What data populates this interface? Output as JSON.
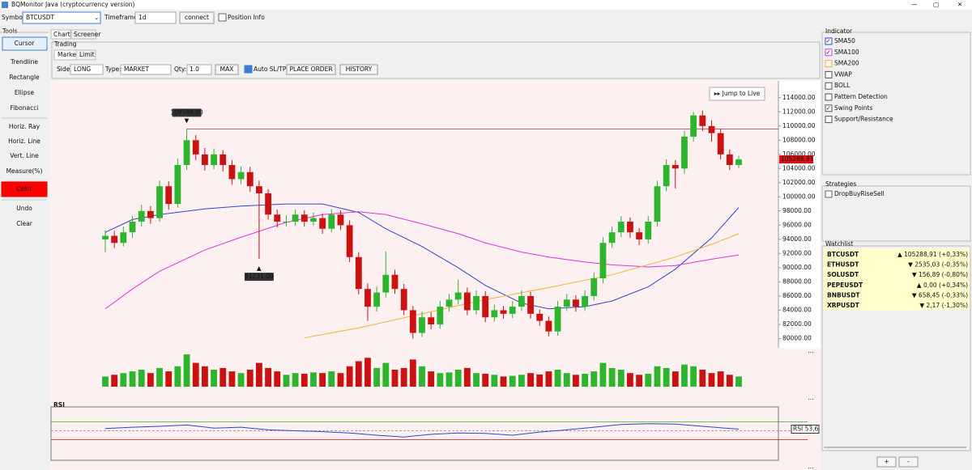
{
  "window": {
    "title": "BQMonitor Java (cryptocurrency version)"
  },
  "toolbar": {
    "symbol_label": "Symbol:",
    "symbol": "BTCUSDT",
    "timeframe_label": "Timeframe:",
    "timeframe": "1d",
    "connect": "connect",
    "position_info": "Position Info"
  },
  "tools": {
    "title": "Tools",
    "buttons": [
      "Cursor",
      "Trendline",
      "Rectangle",
      "Ellipse",
      "Fibonacci",
      "Horiz. Ray",
      "Horiz. Line",
      "Vert. Line",
      "Measure(%)",
      "Color",
      "Undo",
      "Clear"
    ]
  },
  "tabs": [
    "Chart",
    "Screener"
  ],
  "trading": {
    "title": "Trading",
    "tabs": [
      "Market",
      "Limit"
    ],
    "side_label": "Side:",
    "side": "LONG",
    "type_label": "Type:",
    "type": "MARKET",
    "qty_label": "Qty:",
    "qty": "1.0",
    "max": "MAX",
    "auto_sltp": "Auto SL/TP",
    "place_order": "PLACE ORDER",
    "history": "HISTORY"
  },
  "jump_to_live": "▸▸ Jump to Live",
  "chart_data": {
    "type": "candlestick",
    "up_color": "#2db52d",
    "down_color": "#cc1111",
    "xlim": [
      0,
      70
    ],
    "ylim": [
      80000,
      115800
    ],
    "yticks": [
      {
        "value": 80000,
        "label": "80000.00"
      },
      {
        "value": 82000,
        "label": "82000.00"
      },
      {
        "value": 84000,
        "label": "84000.00"
      },
      {
        "value": 86000,
        "label": "86000.00"
      },
      {
        "value": 88000,
        "label": "88000.00"
      },
      {
        "value": 90000,
        "label": "90000.00"
      },
      {
        "value": 92000,
        "label": "92000.00"
      },
      {
        "value": 94000,
        "label": "94000.00"
      },
      {
        "value": 96000,
        "label": "96000.00"
      },
      {
        "value": 98000,
        "label": "98000.00"
      },
      {
        "value": 100000,
        "label": "100000.00"
      },
      {
        "value": 102000,
        "label": "102000.00"
      },
      {
        "value": 104000,
        "label": "104000.00"
      },
      {
        "value": 106000,
        "label": "106000.00"
      },
      {
        "value": 108000,
        "label": "108000.00"
      },
      {
        "value": 110000,
        "label": "110000.00"
      },
      {
        "value": 112000,
        "label": "112000.00"
      },
      {
        "value": 114000,
        "label": "114000.00"
      }
    ],
    "candles": [
      [
        94000,
        95300,
        92200,
        94500
      ],
      [
        94500,
        95200,
        92800,
        93500
      ],
      [
        93500,
        95800,
        93000,
        95000
      ],
      [
        95000,
        97300,
        94200,
        96500
      ],
      [
        96500,
        98900,
        95800,
        98000
      ],
      [
        98000,
        98700,
        96200,
        97000
      ],
      [
        97000,
        102300,
        96500,
        101500
      ],
      [
        101500,
        102200,
        98200,
        99000
      ],
      [
        99000,
        105400,
        98500,
        104500
      ],
      [
        104500,
        109588,
        103800,
        108000
      ],
      [
        108000,
        108700,
        105200,
        106000
      ],
      [
        106000,
        106900,
        103700,
        104500
      ],
      [
        104500,
        106800,
        103900,
        106000
      ],
      [
        106000,
        106600,
        103600,
        104500
      ],
      [
        104500,
        105200,
        101700,
        102500
      ],
      [
        102500,
        104300,
        101800,
        103500
      ],
      [
        103500,
        104200,
        100700,
        101500
      ],
      [
        101500,
        102300,
        91231,
        100500
      ],
      [
        100500,
        101100,
        96800,
        97500
      ],
      [
        97500,
        98200,
        95700,
        96500
      ],
      [
        96500,
        97400,
        95800,
        96500
      ],
      [
        96500,
        98200,
        95900,
        97500
      ],
      [
        97500,
        98100,
        95800,
        96500
      ],
      [
        96500,
        97800,
        95900,
        97000
      ],
      [
        97000,
        97600,
        94800,
        95500
      ],
      [
        95500,
        98300,
        95000,
        97500
      ],
      [
        97500,
        98100,
        95300,
        96000
      ],
      [
        96000,
        96700,
        90800,
        91500
      ],
      [
        91500,
        92200,
        86200,
        87000
      ],
      [
        87000,
        87800,
        82500,
        84500
      ],
      [
        84500,
        87300,
        83800,
        86500
      ],
      [
        86500,
        92300,
        85800,
        89000
      ],
      [
        89000,
        89700,
        86300,
        87000
      ],
      [
        87000,
        87700,
        83300,
        84000
      ],
      [
        84000,
        84600,
        80000,
        80800
      ],
      [
        80800,
        83800,
        80200,
        83000
      ],
      [
        83000,
        83700,
        81300,
        82000
      ],
      [
        82000,
        85300,
        81400,
        84500
      ],
      [
        84500,
        86300,
        83800,
        85500
      ],
      [
        85500,
        88300,
        84800,
        86500
      ],
      [
        86500,
        87200,
        83300,
        84000
      ],
      [
        84000,
        86800,
        83400,
        86000
      ],
      [
        86000,
        86700,
        82300,
        83000
      ],
      [
        83000,
        84800,
        82400,
        84000
      ],
      [
        84000,
        84600,
        82800,
        83500
      ],
      [
        83500,
        85300,
        82900,
        84500
      ],
      [
        84500,
        86800,
        83900,
        86000
      ],
      [
        86000,
        86600,
        82800,
        83500
      ],
      [
        83500,
        84100,
        81800,
        82500
      ],
      [
        82500,
        83100,
        80300,
        81000
      ],
      [
        81000,
        85300,
        80400,
        84500
      ],
      [
        84500,
        86300,
        83900,
        85500
      ],
      [
        85500,
        86100,
        83800,
        84500
      ],
      [
        84500,
        86800,
        83900,
        86000
      ],
      [
        86000,
        89300,
        85400,
        88500
      ],
      [
        88500,
        94300,
        87800,
        93500
      ],
      [
        93500,
        95800,
        92800,
        95000
      ],
      [
        95000,
        97300,
        94300,
        96500
      ],
      [
        96500,
        97100,
        94200,
        95000
      ],
      [
        95000,
        95600,
        93200,
        94000
      ],
      [
        94000,
        97300,
        93400,
        96500
      ],
      [
        96500,
        102300,
        95800,
        101500
      ],
      [
        101500,
        105300,
        100800,
        104500
      ],
      [
        104500,
        105200,
        101200,
        104000
      ],
      [
        104000,
        109300,
        103300,
        108500
      ],
      [
        108500,
        112000,
        107800,
        111500
      ],
      [
        111500,
        112200,
        109300,
        110000
      ],
      [
        110000,
        110800,
        107800,
        109000
      ],
      [
        109000,
        109600,
        105300,
        106000
      ],
      [
        106000,
        106700,
        103800,
        104500
      ],
      [
        104500,
        105800,
        104100,
        105289
      ]
    ],
    "hline": {
      "value": 109588,
      "color": "#b03050"
    },
    "annotations": [
      {
        "index": 9,
        "value": 109588,
        "label": "109588,00",
        "side": "above"
      },
      {
        "index": 17,
        "value": 91231,
        "label": "91231,00",
        "side": "below"
      }
    ],
    "last_price": {
      "value": 105288.91,
      "label": "105288.91"
    },
    "volume": {
      "ylim": [
        0,
        100
      ],
      "values": [
        30,
        35,
        40,
        45,
        50,
        40,
        55,
        45,
        60,
        95,
        70,
        60,
        50,
        55,
        45,
        40,
        50,
        70,
        55,
        45,
        35,
        40,
        38,
        42,
        40,
        45,
        40,
        60,
        75,
        85,
        55,
        70,
        50,
        55,
        80,
        60,
        45,
        40,
        42,
        50,
        55,
        40,
        38,
        35,
        30,
        32,
        35,
        40,
        36,
        45,
        50,
        40,
        35,
        38,
        45,
        70,
        55,
        50,
        40,
        35,
        38,
        60,
        55,
        45,
        65,
        60,
        50,
        40,
        45,
        35,
        30
      ]
    },
    "overlays": [
      {
        "color": "#3344cc",
        "x": [
          0,
          3,
          6,
          11,
          15,
          20,
          24,
          28,
          31,
          35,
          39,
          42,
          46,
          49,
          53,
          56,
          60,
          63,
          67,
          70
        ],
        "values": [
          95000,
          96800,
          97500,
          98300,
          98700,
          99000,
          99000,
          97800,
          95500,
          93000,
          90000,
          87500,
          85000,
          84200,
          84500,
          85300,
          87300,
          89800,
          94200,
          98500
        ]
      },
      {
        "color": "#dd33dd",
        "x": [
          0,
          3,
          6,
          11,
          15,
          20,
          24,
          28,
          31,
          35,
          39,
          42,
          46,
          49,
          53,
          56,
          60,
          63,
          67,
          70
        ],
        "values": [
          84200,
          87000,
          89500,
          92500,
          94300,
          96400,
          97500,
          97900,
          97500,
          96200,
          94800,
          93500,
          92200,
          91500,
          90800,
          90400,
          90100,
          90300,
          91200,
          91800
        ]
      },
      {
        "color": "#f2b233",
        "x": [
          22,
          28,
          35,
          42,
          49,
          56,
          63,
          67,
          70
        ],
        "values": [
          80100,
          81500,
          83500,
          85500,
          87200,
          89000,
          91500,
          93300,
          94800
        ]
      }
    ],
    "rsi": {
      "title": "RSI",
      "ylim": [
        0,
        100
      ],
      "levels": [
        {
          "value": 70,
          "color": "#2db52d"
        },
        {
          "value": 50,
          "color": "#888888"
        },
        {
          "value": 30,
          "color": "#cc1111"
        }
      ],
      "x": [
        0,
        3,
        6,
        9,
        12,
        15,
        18,
        21,
        24,
        27,
        30,
        33,
        36,
        39,
        42,
        45,
        48,
        51,
        54,
        57,
        60,
        63,
        66,
        70
      ],
      "values": [
        55,
        58,
        60,
        63,
        56,
        58,
        52,
        50,
        48,
        45,
        40,
        36,
        42,
        45,
        44,
        40,
        47,
        52,
        58,
        64,
        66,
        65,
        60,
        53.6
      ],
      "last": {
        "value": 53.6,
        "label": "RSI 53,6"
      }
    }
  },
  "indicators": {
    "title": "Indicator",
    "items": [
      {
        "label": "SMA50",
        "checked": true,
        "color": "#3344cc"
      },
      {
        "label": "SMA100",
        "checked": true,
        "color": "#dd33dd"
      },
      {
        "label": "SMA200",
        "checked": false,
        "color": "#f2b233"
      },
      {
        "label": "VWAP",
        "checked": false,
        "color": "#555555"
      },
      {
        "label": "BOLL",
        "checked": false,
        "color": "#555555"
      },
      {
        "label": "Pattern Detection",
        "checked": false,
        "color": "#555555"
      },
      {
        "label": "Swing Points",
        "checked": true,
        "color": "#555555"
      },
      {
        "label": "Support/Resistance",
        "checked": false,
        "color": "#555555"
      }
    ]
  },
  "strategies": {
    "title": "Strategies",
    "items": [
      "DropBuyRiseSell"
    ]
  },
  "watchlist": {
    "title": "Watchlist",
    "rows": [
      {
        "symbol": "BTCUSDT",
        "change": "▲ 105288,91 (+0,33%)",
        "up": true
      },
      {
        "symbol": "ETHUSDT",
        "change": "▼ 2535,03 (-0,35%)",
        "up": false
      },
      {
        "symbol": "SOLUSDT",
        "change": "▼ 156,89 (-0,80%)",
        "up": false
      },
      {
        "symbol": "PEPEUSDT",
        "change": "▲ 0,00 (+0,34%)",
        "up": true
      },
      {
        "symbol": "BNBUSDT",
        "change": "▼ 658,45 (-0,33%)",
        "up": false
      },
      {
        "symbol": "XRPUSDT",
        "change": "▼ 2,17 (-1,30%)",
        "up": false
      }
    ],
    "buttons": [
      "+",
      "-"
    ]
  },
  "more": "..."
}
